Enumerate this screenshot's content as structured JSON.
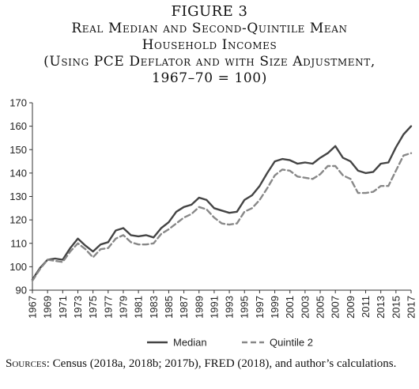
{
  "figure": {
    "label": "FIGURE 3",
    "title_lines": [
      "Real Median and Second-Quintile Mean",
      "Household Incomes",
      "(Using PCE Deflator and with Size Adjustment,",
      "1967–70 = 100)"
    ]
  },
  "source": {
    "label": "Sources",
    "text": ": Census (2018a, 2018b; 2017b), FRED (2018), and author’s calculations."
  },
  "chart_data": {
    "type": "line",
    "title": "",
    "xlabel": "",
    "ylabel": "",
    "ylim": [
      90,
      170
    ],
    "yticks": [
      90,
      100,
      110,
      120,
      130,
      140,
      150,
      160,
      170
    ],
    "xlim": [
      1967,
      2017
    ],
    "xticks": [
      1967,
      1969,
      1971,
      1973,
      1975,
      1977,
      1979,
      1981,
      1983,
      1985,
      1987,
      1989,
      1991,
      1993,
      1995,
      1997,
      1999,
      2001,
      2003,
      2005,
      2007,
      2009,
      2011,
      2013,
      2015,
      2017
    ],
    "grid": false,
    "legend": "bottom",
    "x": [
      1967,
      1968,
      1969,
      1970,
      1971,
      1972,
      1973,
      1974,
      1975,
      1976,
      1977,
      1978,
      1979,
      1980,
      1981,
      1982,
      1983,
      1984,
      1985,
      1986,
      1987,
      1988,
      1989,
      1990,
      1991,
      1992,
      1993,
      1994,
      1995,
      1996,
      1997,
      1998,
      1999,
      2000,
      2001,
      2002,
      2003,
      2004,
      2005,
      2006,
      2007,
      2008,
      2009,
      2010,
      2011,
      2012,
      2013,
      2014,
      2015,
      2016,
      2017
    ],
    "series": [
      {
        "name": "Median",
        "color": "#444444",
        "dash": "solid",
        "values": [
          94.5,
          99.5,
          103.0,
          103.5,
          103.0,
          108.0,
          112.0,
          109.0,
          106.5,
          109.5,
          110.5,
          115.5,
          116.5,
          113.5,
          113.0,
          113.5,
          112.5,
          116.5,
          119.0,
          123.5,
          125.5,
          126.5,
          129.5,
          128.5,
          125.0,
          124.0,
          123.0,
          123.5,
          128.5,
          130.5,
          134.5,
          140.0,
          145.0,
          146.0,
          145.5,
          144.0,
          144.5,
          144.0,
          146.5,
          148.5,
          151.5,
          146.5,
          145.0,
          141.0,
          140.0,
          140.5,
          144.0,
          144.5,
          151.0,
          156.5,
          160.0
        ]
      },
      {
        "name": "Quintile 2",
        "color": "#888888",
        "dash": "dashed",
        "values": [
          94.0,
          99.0,
          103.0,
          102.5,
          102.0,
          106.5,
          110.0,
          107.5,
          104.0,
          107.5,
          108.0,
          112.0,
          113.5,
          110.5,
          109.5,
          109.5,
          110.0,
          114.0,
          116.0,
          118.5,
          121.0,
          122.5,
          125.5,
          124.5,
          121.0,
          118.5,
          118.0,
          118.5,
          123.5,
          125.0,
          128.5,
          133.5,
          139.0,
          141.5,
          141.0,
          138.5,
          138.0,
          137.5,
          139.5,
          143.0,
          143.0,
          139.0,
          137.5,
          131.5,
          131.5,
          132.0,
          134.5,
          134.5,
          141.0,
          147.5,
          148.5
        ]
      }
    ]
  }
}
